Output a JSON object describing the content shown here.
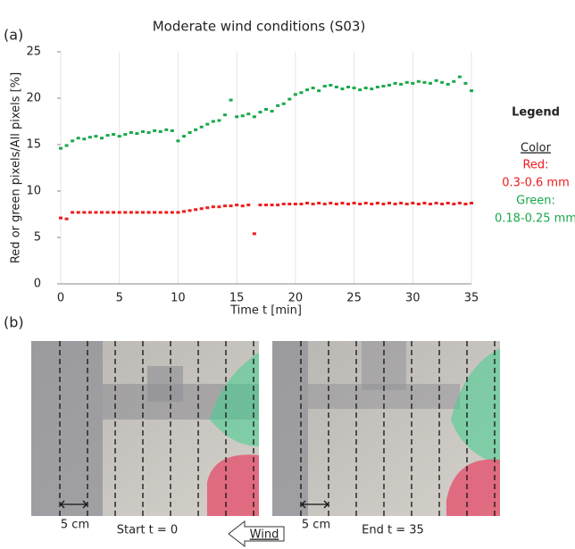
{
  "chart_data": {
    "type": "scatter",
    "title": "Moderate wind conditions (S03)",
    "panel_label": "(a)",
    "xlabel": "Time t [min]",
    "ylabel": "Red or green pixels/All pixels [%]",
    "xlim": [
      0,
      35
    ],
    "xticks": [
      0,
      5,
      10,
      15,
      20,
      25,
      30,
      35
    ],
    "ylim": [
      0,
      25
    ],
    "yticks": [
      0,
      5,
      10,
      15,
      20,
      25
    ],
    "xgrid": true,
    "legend_title": "Legend",
    "legend_subtitle": "Color",
    "x": [
      0,
      0.5,
      1,
      1.5,
      2,
      2.5,
      3,
      3.5,
      4,
      4.5,
      5,
      5.5,
      6,
      6.5,
      7,
      7.5,
      8,
      8.5,
      9,
      9.5,
      10,
      10.5,
      11,
      11.5,
      12,
      12.5,
      13,
      13.5,
      14,
      14.5,
      15,
      15.5,
      16,
      16.5,
      17,
      17.5,
      18,
      18.5,
      19,
      19.5,
      20,
      20.5,
      21,
      21.5,
      22,
      22.5,
      23,
      23.5,
      24,
      24.5,
      25,
      25.5,
      26,
      26.5,
      27,
      27.5,
      28,
      28.5,
      29,
      29.5,
      30,
      30.5,
      31,
      31.5,
      32,
      32.5,
      33,
      33.5,
      34,
      34.5,
      35
    ],
    "series": [
      {
        "name": "Green:",
        "description": "0.18-0.25 mm",
        "color": "#1aa84a",
        "values": [
          14.6,
          14.9,
          15.4,
          15.7,
          15.6,
          15.8,
          15.9,
          15.7,
          16.0,
          16.1,
          15.9,
          16.1,
          16.3,
          16.2,
          16.4,
          16.3,
          16.5,
          16.4,
          16.6,
          16.5,
          15.4,
          15.9,
          16.3,
          16.6,
          16.9,
          17.2,
          17.5,
          17.6,
          18.2,
          19.8,
          18.0,
          18.1,
          18.3,
          18.0,
          18.5,
          18.8,
          18.6,
          19.2,
          19.4,
          19.9,
          20.4,
          20.6,
          20.9,
          21.1,
          20.8,
          21.3,
          21.4,
          21.2,
          21.0,
          21.2,
          21.1,
          20.9,
          21.1,
          21.0,
          21.2,
          21.3,
          21.4,
          21.6,
          21.5,
          21.7,
          21.6,
          21.8,
          21.7,
          21.6,
          21.9,
          21.7,
          21.5,
          21.8,
          22.3,
          21.6,
          20.8
        ]
      },
      {
        "name": "Red:",
        "description": "0.3-0.6 mm",
        "color": "#ee1c1c",
        "values": [
          7.1,
          7.0,
          7.7,
          7.7,
          7.7,
          7.7,
          7.7,
          7.7,
          7.7,
          7.7,
          7.7,
          7.7,
          7.7,
          7.7,
          7.7,
          7.7,
          7.7,
          7.7,
          7.7,
          7.7,
          7.7,
          7.8,
          7.9,
          8.0,
          8.1,
          8.2,
          8.3,
          8.3,
          8.4,
          8.4,
          8.5,
          8.4,
          8.5,
          5.4,
          8.5,
          8.5,
          8.5,
          8.5,
          8.6,
          8.6,
          8.6,
          8.6,
          8.7,
          8.6,
          8.7,
          8.6,
          8.7,
          8.6,
          8.7,
          8.6,
          8.7,
          8.6,
          8.7,
          8.6,
          8.7,
          8.6,
          8.7,
          8.6,
          8.7,
          8.6,
          8.7,
          8.6,
          8.7,
          8.6,
          8.7,
          8.6,
          8.7,
          8.6,
          8.7,
          8.6,
          8.7
        ]
      }
    ]
  },
  "panel_b": {
    "label": "(b)",
    "scale_labels": [
      "5 cm",
      "5 cm"
    ],
    "captions": [
      "Start t = 0",
      "End t = 35"
    ],
    "arrow_label": "Wind"
  }
}
